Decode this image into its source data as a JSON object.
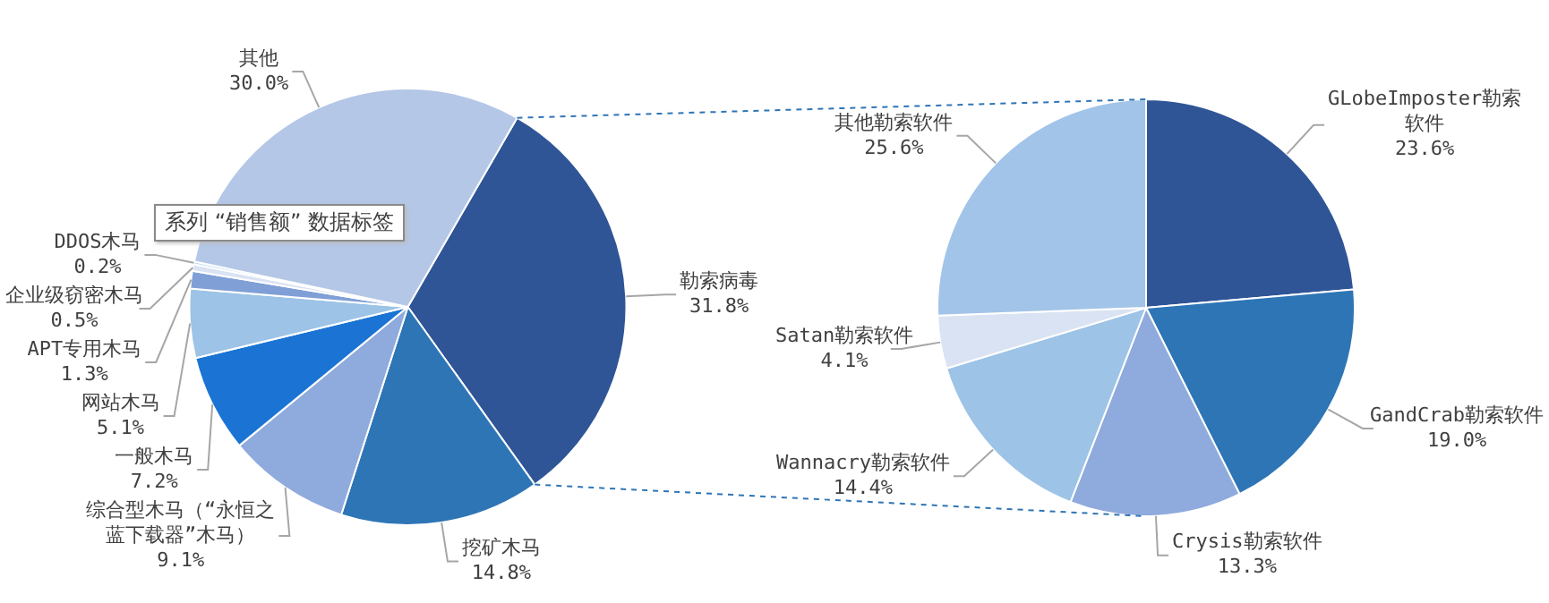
{
  "chart_data": [
    {
      "type": "pie",
      "categories": [
        "勒索病毒",
        "挖矿木马",
        "综合型木马（“永恒之蓝下载器”木马）",
        "一般木马",
        "网站木马",
        "APT专用木马",
        "企业级窃密木马",
        "DDOS木马",
        "其他"
      ],
      "values": [
        31.8,
        14.8,
        9.1,
        7.2,
        5.1,
        1.3,
        0.5,
        0.2,
        30.0
      ],
      "value_labels": [
        "31.8%",
        "14.8%",
        "9.1%",
        "7.2%",
        "5.1%",
        "1.3%",
        "0.5%",
        "0.2%",
        "30.0%"
      ],
      "colors": [
        "#2f5597",
        "#2e75b6",
        "#8faadc",
        "#1b74d3",
        "#9dc3e6",
        "#7f9fd6",
        "#dae3f3",
        "#bdd7ee",
        "#b4c7e7"
      ],
      "annotations": [
        "系列 “销售额” 数据标签"
      ]
    },
    {
      "type": "pie",
      "categories": [
        "GLobeImposter勒索软件",
        "GandCrab勒索软件",
        "Crysis勒索软件",
        "Wannacry勒索软件",
        "Satan勒索软件",
        "其他勒索软件"
      ],
      "values": [
        23.6,
        19.0,
        13.3,
        14.4,
        4.1,
        25.6
      ],
      "value_labels": [
        "23.6%",
        "19.0%",
        "13.3%",
        "14.4%",
        "4.1%",
        "25.6%"
      ],
      "colors": [
        "#2f5597",
        "#2e75b6",
        "#8faadc",
        "#9dc3e6",
        "#dae3f3",
        "#a2c4e8"
      ]
    }
  ]
}
